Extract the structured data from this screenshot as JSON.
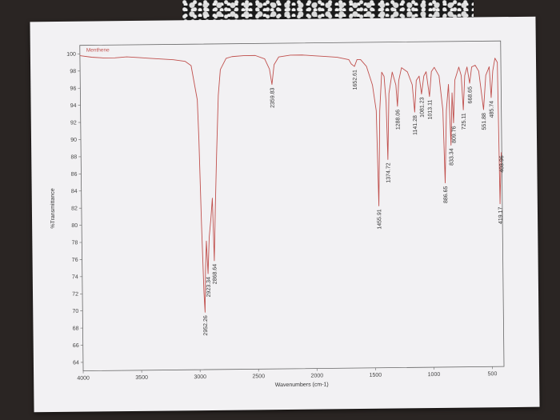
{
  "chart_data": {
    "type": "line",
    "title": "Menthene",
    "xlabel": "Wavenumbers (cm-1)",
    "ylabel": "%Transmittance",
    "xlim": [
      4000,
      400
    ],
    "ylim": [
      63,
      101
    ],
    "x_ticks": [
      "4000",
      "3500",
      "3000",
      "2500",
      "2000",
      "1500",
      "1000",
      "500"
    ],
    "y_ticks": [
      "100",
      "98",
      "96",
      "94",
      "92",
      "90",
      "88",
      "86",
      "84",
      "82",
      "80",
      "78",
      "76",
      "74",
      "72",
      "70",
      "68",
      "66",
      "64"
    ],
    "line_color": "#c0504d",
    "series": [
      {
        "x": [
          4000,
          3900,
          3800,
          3700,
          3600,
          3500,
          3400,
          3300,
          3200,
          3100,
          3050,
          3000,
          2990,
          2975,
          2960,
          2952.26,
          2945,
          2935,
          2923.34,
          2910,
          2895,
          2880,
          2868.64,
          2855,
          2840,
          2820,
          2800,
          2750,
          2700,
          2600,
          2500,
          2420,
          2380,
          2359.83,
          2340,
          2300,
          2200,
          2100,
          2000,
          1900,
          1800,
          1700,
          1680,
          1652.61,
          1630,
          1600,
          1550,
          1500,
          1470,
          1455.91,
          1440,
          1420,
          1400,
          1385,
          1374.72,
          1360,
          1330,
          1300,
          1288.06,
          1275,
          1250,
          1200,
          1160,
          1141.28,
          1125,
          1100,
          1081.23,
          1060,
          1040,
          1013.11,
          995,
          970,
          930,
          900,
          886.65,
          870,
          850,
          833.34,
          820,
          809.76,
          795,
          760,
          740,
          725.11,
          710,
          690,
          668.65,
          650,
          620,
          590,
          551.88,
          530,
          500,
          485.74,
          470,
          450,
          430,
          419.17,
          410,
          403.96
        ],
        "y": [
          99.8,
          99.6,
          99.5,
          99.5,
          99.6,
          99.5,
          99.4,
          99.3,
          99.2,
          99.0,
          98.5,
          94.5,
          90.0,
          80.0,
          72.0,
          69.7,
          74.5,
          78.0,
          74.2,
          78.5,
          80.5,
          83.0,
          75.7,
          82.0,
          88.0,
          95.0,
          98.0,
          99.3,
          99.5,
          99.6,
          99.6,
          99.2,
          98.0,
          96.2,
          98.5,
          99.4,
          99.6,
          99.6,
          99.5,
          99.4,
          99.3,
          99.0,
          98.5,
          98.2,
          99.0,
          99.0,
          98.2,
          96.0,
          93.0,
          81.9,
          93.0,
          97.5,
          97.0,
          94.0,
          87.3,
          95.0,
          97.5,
          96.0,
          93.5,
          96.5,
          98.0,
          97.5,
          96.0,
          92.8,
          96.5,
          97.0,
          94.9,
          97.0,
          97.5,
          94.6,
          97.5,
          98.0,
          97.0,
          93.0,
          84.5,
          93.0,
          96.0,
          88.9,
          95.0,
          91.5,
          96.5,
          98.0,
          97.0,
          93.0,
          97.0,
          98.0,
          96.1,
          98.0,
          98.2,
          97.5,
          93.0,
          97.0,
          98.0,
          94.4,
          97.5,
          99.0,
          98.5,
          82.0,
          86.0,
          88.0
        ]
      }
    ],
    "peak_labels": [
      {
        "x": 2952.26,
        "y": 69.7,
        "label": "2952.26"
      },
      {
        "x": 2923.34,
        "y": 74.2,
        "label": "2923.34"
      },
      {
        "x": 2868.64,
        "y": 75.7,
        "label": "2868.64"
      },
      {
        "x": 2359.83,
        "y": 96.2,
        "label": "2359.83"
      },
      {
        "x": 1652.61,
        "y": 98.2,
        "label": "1652.61"
      },
      {
        "x": 1455.91,
        "y": 81.9,
        "label": "1455.91"
      },
      {
        "x": 1374.72,
        "y": 87.3,
        "label": "1374.72"
      },
      {
        "x": 1288.06,
        "y": 93.5,
        "label": "1288.06"
      },
      {
        "x": 1141.28,
        "y": 92.8,
        "label": "1141.28"
      },
      {
        "x": 1081.23,
        "y": 94.9,
        "label": "1081.23"
      },
      {
        "x": 1013.11,
        "y": 94.6,
        "label": "1013.11"
      },
      {
        "x": 886.65,
        "y": 84.5,
        "label": "886.65"
      },
      {
        "x": 833.34,
        "y": 88.9,
        "label": "833.34"
      },
      {
        "x": 809.76,
        "y": 91.5,
        "label": "809.76"
      },
      {
        "x": 725.11,
        "y": 93.0,
        "label": "725.11"
      },
      {
        "x": 668.65,
        "y": 96.1,
        "label": "668.65"
      },
      {
        "x": 551.88,
        "y": 93.0,
        "label": "551.88"
      },
      {
        "x": 485.74,
        "y": 94.4,
        "label": "485.74"
      },
      {
        "x": 419.17,
        "y": 82.0,
        "label": "419.17"
      },
      {
        "x": 403.96,
        "y": 88.0,
        "label": "403.96"
      }
    ]
  }
}
